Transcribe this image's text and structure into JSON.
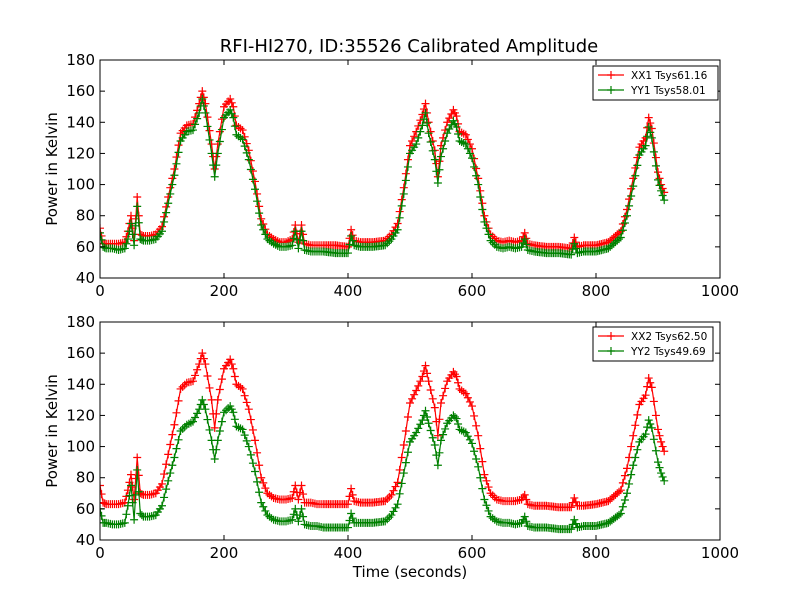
{
  "title": "RFI-HI270, ID:35526 Calibrated Amplitude",
  "chart_data": [
    {
      "type": "line",
      "marker": "+",
      "ylabel": "Power in Kelvin",
      "xlabel": "",
      "xlim": [
        0,
        1000
      ],
      "ylim": [
        40,
        180
      ],
      "xticks": [
        "0",
        "200",
        "400",
        "600",
        "800",
        "1000"
      ],
      "yticks": [
        "40",
        "60",
        "80",
        "100",
        "120",
        "140",
        "160",
        "180"
      ],
      "legend_position": "top-right",
      "series": [
        {
          "name": "XX1 Tsys61.16",
          "color": "#ff0000",
          "x": [
            0,
            5,
            10,
            20,
            30,
            40,
            45,
            50,
            55,
            60,
            65,
            70,
            80,
            90,
            100,
            110,
            120,
            130,
            140,
            150,
            160,
            165,
            170,
            180,
            185,
            190,
            200,
            210,
            215,
            220,
            230,
            240,
            250,
            260,
            270,
            280,
            290,
            300,
            310,
            315,
            320,
            325,
            330,
            340,
            350,
            360,
            380,
            400,
            405,
            410,
            420,
            440,
            460,
            470,
            480,
            490,
            500,
            510,
            520,
            525,
            530,
            540,
            545,
            550,
            560,
            570,
            575,
            580,
            590,
            600,
            610,
            620,
            630,
            640,
            650,
            660,
            670,
            680,
            685,
            690,
            700,
            720,
            740,
            760,
            765,
            770,
            780,
            800,
            820,
            840,
            850,
            860,
            870,
            880,
            885,
            890,
            900,
            905,
            910
          ],
          "y": [
            72,
            62,
            62,
            62,
            62,
            63,
            70,
            80,
            64,
            92,
            68,
            67,
            67,
            68,
            73,
            92,
            110,
            133,
            138,
            139,
            152,
            160,
            152,
            126,
            110,
            126,
            150,
            155,
            150,
            138,
            135,
            122,
            102,
            78,
            68,
            65,
            63,
            63,
            65,
            74,
            63,
            74,
            62,
            61,
            61,
            61,
            61,
            60,
            71,
            64,
            63,
            63,
            64,
            68,
            75,
            98,
            125,
            134,
            145,
            152,
            140,
            122,
            105,
            125,
            140,
            148,
            144,
            134,
            132,
            123,
            104,
            80,
            68,
            64,
            63,
            64,
            63,
            64,
            69,
            62,
            61,
            60,
            60,
            59,
            66,
            60,
            61,
            61,
            63,
            70,
            84,
            104,
            124,
            130,
            143,
            136,
            108,
            100,
            95
          ]
        },
        {
          "name": "YY1 Tsys58.01",
          "color": "#008000",
          "x": [
            0,
            5,
            10,
            20,
            30,
            40,
            45,
            50,
            55,
            60,
            65,
            70,
            80,
            90,
            100,
            110,
            120,
            130,
            140,
            150,
            160,
            165,
            170,
            180,
            185,
            190,
            200,
            210,
            215,
            220,
            230,
            240,
            250,
            260,
            270,
            280,
            290,
            300,
            310,
            315,
            320,
            325,
            330,
            340,
            350,
            360,
            380,
            400,
            405,
            410,
            420,
            440,
            460,
            470,
            480,
            490,
            500,
            510,
            520,
            525,
            530,
            540,
            545,
            550,
            560,
            570,
            575,
            580,
            590,
            600,
            610,
            620,
            630,
            640,
            650,
            660,
            670,
            680,
            685,
            690,
            700,
            720,
            740,
            760,
            765,
            770,
            780,
            800,
            820,
            840,
            850,
            860,
            870,
            880,
            885,
            890,
            900,
            905,
            910
          ],
          "y": [
            69,
            60,
            59,
            59,
            58,
            59,
            65,
            75,
            61,
            86,
            65,
            64,
            64,
            65,
            70,
            88,
            106,
            128,
            134,
            135,
            146,
            155,
            146,
            120,
            105,
            120,
            143,
            148,
            143,
            132,
            129,
            116,
            97,
            74,
            65,
            62,
            60,
            60,
            61,
            70,
            59,
            70,
            58,
            57,
            57,
            57,
            56,
            56,
            67,
            61,
            60,
            60,
            61,
            65,
            71,
            94,
            120,
            126,
            138,
            146,
            133,
            116,
            101,
            118,
            133,
            141,
            137,
            128,
            126,
            117,
            100,
            76,
            64,
            60,
            59,
            60,
            59,
            60,
            65,
            58,
            57,
            56,
            56,
            55,
            62,
            56,
            57,
            57,
            59,
            66,
            80,
            99,
            119,
            125,
            137,
            130,
            103,
            96,
            90
          ]
        }
      ]
    },
    {
      "type": "line",
      "marker": "+",
      "ylabel": "Power in Kelvin",
      "xlabel": "Time (seconds)",
      "xlim": [
        0,
        1000
      ],
      "ylim": [
        40,
        180
      ],
      "xticks": [
        "0",
        "200",
        "400",
        "600",
        "800",
        "1000"
      ],
      "yticks": [
        "40",
        "60",
        "80",
        "100",
        "120",
        "140",
        "160",
        "180"
      ],
      "legend_position": "top-right",
      "series": [
        {
          "name": "XX2 Tsys62.50",
          "color": "#ff0000",
          "x": [
            0,
            5,
            10,
            20,
            30,
            40,
            45,
            50,
            55,
            60,
            65,
            70,
            80,
            90,
            100,
            110,
            120,
            130,
            140,
            150,
            160,
            165,
            170,
            180,
            185,
            190,
            200,
            210,
            215,
            220,
            230,
            240,
            250,
            260,
            270,
            280,
            290,
            300,
            310,
            315,
            320,
            325,
            330,
            340,
            350,
            360,
            380,
            400,
            405,
            410,
            420,
            440,
            460,
            470,
            480,
            490,
            500,
            510,
            520,
            525,
            530,
            540,
            545,
            550,
            560,
            570,
            575,
            580,
            590,
            600,
            610,
            620,
            630,
            640,
            650,
            660,
            670,
            680,
            685,
            690,
            700,
            720,
            740,
            760,
            765,
            770,
            780,
            800,
            820,
            840,
            850,
            860,
            870,
            880,
            885,
            890,
            900,
            905,
            910
          ],
          "y": [
            75,
            64,
            63,
            63,
            63,
            64,
            72,
            82,
            66,
            93,
            70,
            69,
            69,
            70,
            76,
            95,
            114,
            137,
            141,
            142,
            153,
            160,
            153,
            130,
            112,
            130,
            150,
            156,
            150,
            140,
            137,
            124,
            104,
            80,
            70,
            67,
            66,
            66,
            67,
            75,
            66,
            75,
            64,
            64,
            63,
            63,
            63,
            63,
            73,
            65,
            64,
            64,
            65,
            69,
            77,
            101,
            128,
            136,
            145,
            152,
            142,
            125,
            107,
            128,
            142,
            148,
            145,
            137,
            134,
            126,
            107,
            82,
            70,
            66,
            65,
            65,
            65,
            66,
            69,
            63,
            62,
            62,
            61,
            61,
            67,
            62,
            62,
            63,
            65,
            72,
            86,
            107,
            127,
            133,
            144,
            138,
            111,
            103,
            97
          ]
        },
        {
          "name": "YY2 Tsys49.69",
          "color": "#008000",
          "x": [
            0,
            5,
            10,
            20,
            30,
            40,
            45,
            50,
            55,
            60,
            65,
            70,
            80,
            90,
            100,
            110,
            120,
            130,
            140,
            150,
            160,
            165,
            170,
            180,
            185,
            190,
            200,
            210,
            215,
            220,
            230,
            240,
            250,
            260,
            270,
            280,
            290,
            300,
            310,
            315,
            320,
            325,
            330,
            340,
            350,
            360,
            380,
            400,
            405,
            410,
            420,
            440,
            460,
            470,
            480,
            490,
            500,
            510,
            520,
            525,
            530,
            540,
            545,
            550,
            560,
            570,
            575,
            580,
            590,
            600,
            610,
            620,
            630,
            640,
            650,
            660,
            670,
            680,
            685,
            690,
            700,
            720,
            740,
            760,
            765,
            770,
            780,
            800,
            820,
            840,
            850,
            860,
            870,
            880,
            885,
            890,
            900,
            905,
            910
          ],
          "y": [
            60,
            51,
            51,
            50,
            50,
            51,
            62,
            75,
            53,
            85,
            57,
            55,
            55,
            56,
            62,
            78,
            93,
            110,
            114,
            116,
            124,
            130,
            124,
            104,
            92,
            104,
            122,
            126,
            122,
            113,
            111,
            100,
            84,
            64,
            56,
            53,
            52,
            52,
            53,
            60,
            52,
            60,
            50,
            49,
            49,
            48,
            48,
            48,
            57,
            51,
            51,
            51,
            52,
            56,
            63,
            83,
            103,
            109,
            117,
            123,
            115,
            101,
            88,
            104,
            115,
            120,
            118,
            111,
            109,
            102,
            87,
            66,
            55,
            52,
            51,
            51,
            50,
            51,
            55,
            49,
            48,
            48,
            47,
            47,
            53,
            48,
            49,
            49,
            51,
            57,
            70,
            88,
            103,
            108,
            117,
            112,
            90,
            83,
            78
          ]
        }
      ]
    }
  ]
}
